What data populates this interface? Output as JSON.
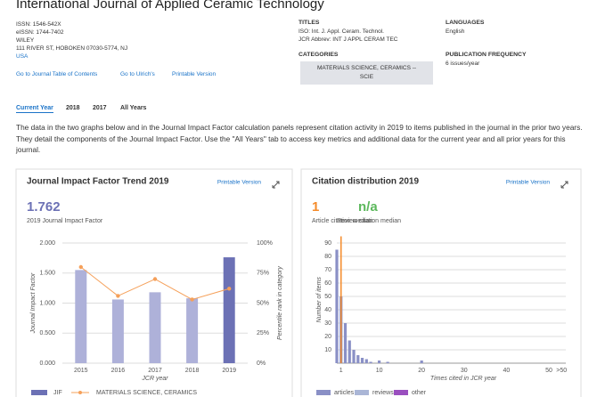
{
  "header": {
    "title": "International Journal of Applied Ceramic Technology",
    "issn": "ISSN: 1546-542X",
    "eissn": "eISSN: 1744-7402",
    "publisher": "WILEY",
    "address": "111 RIVER ST, HOBOKEN 07030-5774, NJ",
    "country": "USA",
    "links": [
      "Go to Journal Table of Contents",
      "Go to Ulrich's",
      "Printable Version"
    ]
  },
  "titles": {
    "heading": "TITLES",
    "iso": "ISO: Int. J. Appl. Ceram. Technol.",
    "jcr_abbrev": "JCR Abbrev: INT J APPL CERAM TEC"
  },
  "categories": {
    "heading": "CATEGORIES",
    "items": [
      "MATERIALS SCIENCE, CERAMICS -- SCIE"
    ]
  },
  "languages": {
    "heading": "LANGUAGES",
    "value": "English"
  },
  "frequency": {
    "heading": "PUBLICATION FREQUENCY",
    "value": "6 issues/year"
  },
  "tabs": [
    "Current Year",
    "2018",
    "2017",
    "All Years"
  ],
  "description": "The data in the two graphs below and in the Journal Impact Factor calculation panels represent citation activity in 2019 to items published in the journal in the prior two years. They detail the components of the Journal Impact Factor. Use the \"All Years\" tab to access key metrics and additional data for the current year and all prior years for this journal.",
  "chart_data": [
    {
      "type": "bar",
      "title": "Journal Impact Factor Trend 2019",
      "link": "Printable Version",
      "metric": 1.762,
      "metric_label": "2019 Journal Impact Factor",
      "categories": [
        "2015",
        "2016",
        "2017",
        "2018",
        "2019"
      ],
      "series": [
        {
          "name": "JIF",
          "color": "#6c71b5",
          "colors": [
            "#aeb1d9",
            "#aeb1d9",
            "#aeb1d9",
            "#aeb1d9",
            "#6c71b5"
          ],
          "values": [
            1.55,
            1.06,
            1.18,
            1.08,
            1.762
          ]
        },
        {
          "name": "MATERIALS SCIENCE, CERAMICS",
          "type": "line",
          "axis": "y2",
          "color": "#f5a05a",
          "values": [
            80,
            56,
            70,
            53,
            62
          ]
        }
      ],
      "ylim": [
        0,
        2
      ],
      "yticks": [
        {
          "value": 0,
          "label": "0.000"
        },
        {
          "value": 0.5,
          "label": "0.500"
        },
        {
          "value": 1,
          "label": "1.000"
        },
        {
          "value": 1.5,
          "label": "1.500"
        },
        {
          "value": 2,
          "label": "2.000"
        }
      ],
      "y2lim": [
        0,
        100
      ],
      "y2ticks": [
        {
          "value": 0,
          "label": "0%"
        },
        {
          "value": 25,
          "label": "25%"
        },
        {
          "value": 50,
          "label": "50%"
        },
        {
          "value": 75,
          "label": "75%"
        },
        {
          "value": 100,
          "label": "100%"
        }
      ],
      "ylabel": "Journal Impact Factor",
      "y2label": "Percentile rank in category",
      "xlabel": "JCR year",
      "grid": true
    },
    {
      "type": "histogram",
      "title": "Citation distribution 2019",
      "link": "Printable Version",
      "medians": [
        {
          "value": 1,
          "label": "Article citation median",
          "color": "#f58b2a"
        },
        {
          "value": "n/a",
          "label": "Review citation median",
          "color": "#5cb85c"
        }
      ],
      "x": [
        0,
        1,
        2,
        3,
        4,
        5,
        6,
        7,
        8,
        10,
        12,
        20
      ],
      "series": [
        {
          "name": "articles",
          "color": "#8a90c6",
          "values": [
            85,
            50,
            30,
            17,
            10,
            6,
            4,
            3,
            1,
            2,
            1,
            2
          ]
        }
      ],
      "legend": [
        {
          "name": "articles",
          "color": "#8a90c6"
        },
        {
          "name": "reviews",
          "color": "#aab6d6"
        },
        {
          "name": "other",
          "color": "#9a4fbf"
        }
      ],
      "xlim": [
        0,
        54
      ],
      "xticks": [
        1,
        10,
        20,
        30,
        40,
        50,
        {
          "value": 53,
          "label": ">50"
        }
      ],
      "ylim": [
        0,
        95
      ],
      "yticks": [
        10,
        20,
        30,
        40,
        50,
        60,
        70,
        80,
        90
      ],
      "ylabel": "Number of items",
      "xlabel": "Times cited in JCR year",
      "grid": true
    }
  ]
}
